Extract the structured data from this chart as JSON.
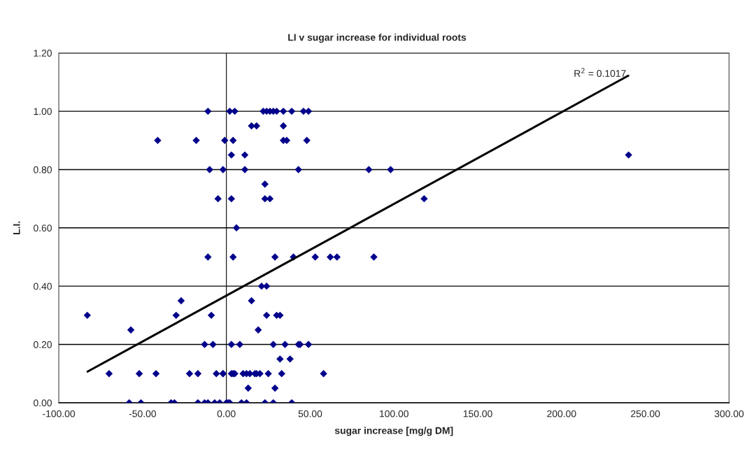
{
  "chart_data": {
    "type": "scatter",
    "title": "LI v sugar increase for individual roots",
    "xlabel": "sugar increase [mg/g DM]",
    "ylabel": "L.I.",
    "xlim": [
      -100,
      300
    ],
    "ylim": [
      0,
      1.2
    ],
    "xticks": [
      {
        "value": -100,
        "label": "-100.00"
      },
      {
        "value": -50,
        "label": "-50.00"
      },
      {
        "value": 0,
        "label": "0.00"
      },
      {
        "value": 50,
        "label": "50.00"
      },
      {
        "value": 100,
        "label": "100.00"
      },
      {
        "value": 150,
        "label": "150.00"
      },
      {
        "value": 200,
        "label": "200.00"
      },
      {
        "value": 250,
        "label": "250.00"
      },
      {
        "value": 300,
        "label": "300.00"
      }
    ],
    "yticks": [
      {
        "value": 0,
        "label": "0.00"
      },
      {
        "value": 0.2,
        "label": "0.20"
      },
      {
        "value": 0.4,
        "label": "0.40"
      },
      {
        "value": 0.6,
        "label": "0.60"
      },
      {
        "value": 0.8,
        "label": "0.80"
      },
      {
        "value": 1.0,
        "label": "1.00"
      },
      {
        "value": 1.2,
        "label": "1.20"
      }
    ],
    "grid": "y",
    "legend": false,
    "marker": "diamond",
    "annotations": [
      {
        "text": "R$^{2}$ = 0.1017",
        "x": 239.8,
        "y": 1.12
      }
    ],
    "series": [
      {
        "color": "#00008b",
        "x": [
          -41,
          -18,
          -1,
          4,
          34,
          36,
          48,
          -11,
          2,
          5,
          22,
          24,
          26,
          28,
          30,
          34,
          39,
          46,
          49,
          15,
          18,
          34,
          3,
          11,
          -10,
          -2,
          11,
          43,
          85,
          98,
          118,
          240,
          -5,
          3,
          23,
          26,
          23,
          6,
          -83,
          -57,
          -30,
          -27,
          -9,
          -11,
          4,
          29,
          40,
          53,
          62,
          66,
          88,
          -13,
          -8,
          3,
          8,
          28,
          35,
          43,
          44,
          49,
          -70,
          -52,
          -42,
          -22,
          -17,
          -6,
          -2,
          -2,
          3,
          4,
          5,
          10,
          12,
          14,
          17,
          18,
          20,
          25,
          33,
          58,
          -58,
          -51,
          -33,
          -31,
          -17,
          -13,
          -11,
          -7,
          -4,
          0,
          1,
          2,
          9,
          12,
          23,
          28,
          39,
          13,
          29,
          32,
          38,
          19,
          24,
          30,
          32,
          15,
          21,
          24
        ],
        "values": [
          0.9,
          0.9,
          0.9,
          0.9,
          0.9,
          0.9,
          0.9,
          1.0,
          1.0,
          1.0,
          1.0,
          1.0,
          1.0,
          1.0,
          1.0,
          1.0,
          1.0,
          1.0,
          1.0,
          0.95,
          0.95,
          0.95,
          0.85,
          0.85,
          0.8,
          0.8,
          0.8,
          0.8,
          0.8,
          0.8,
          0.7,
          0.85,
          0.7,
          0.7,
          0.7,
          0.7,
          0.75,
          0.6,
          0.3,
          0.25,
          0.3,
          0.35,
          0.3,
          0.5,
          0.5,
          0.5,
          0.5,
          0.5,
          0.5,
          0.5,
          0.5,
          0.2,
          0.2,
          0.2,
          0.2,
          0.2,
          0.2,
          0.2,
          0.2,
          0.2,
          0.1,
          0.1,
          0.1,
          0.1,
          0.1,
          0.1,
          0.1,
          0.1,
          0.1,
          0.1,
          0.1,
          0.1,
          0.1,
          0.1,
          0.1,
          0.1,
          0.1,
          0.1,
          0.1,
          0.1,
          0,
          0,
          0,
          0,
          0,
          0,
          0,
          0,
          0,
          0,
          0,
          0,
          0,
          0,
          0,
          0,
          0,
          0.05,
          0.05,
          0.15,
          0.15,
          0.25,
          0.3,
          0.3,
          0.3,
          0.35,
          0.4,
          0.4
        ]
      },
      {
        "type": "line",
        "color": "#000000",
        "marker": "none",
        "x": [
          -82.8,
          239.8
        ],
        "values": [
          0.107,
          1.122
        ]
      }
    ]
  }
}
